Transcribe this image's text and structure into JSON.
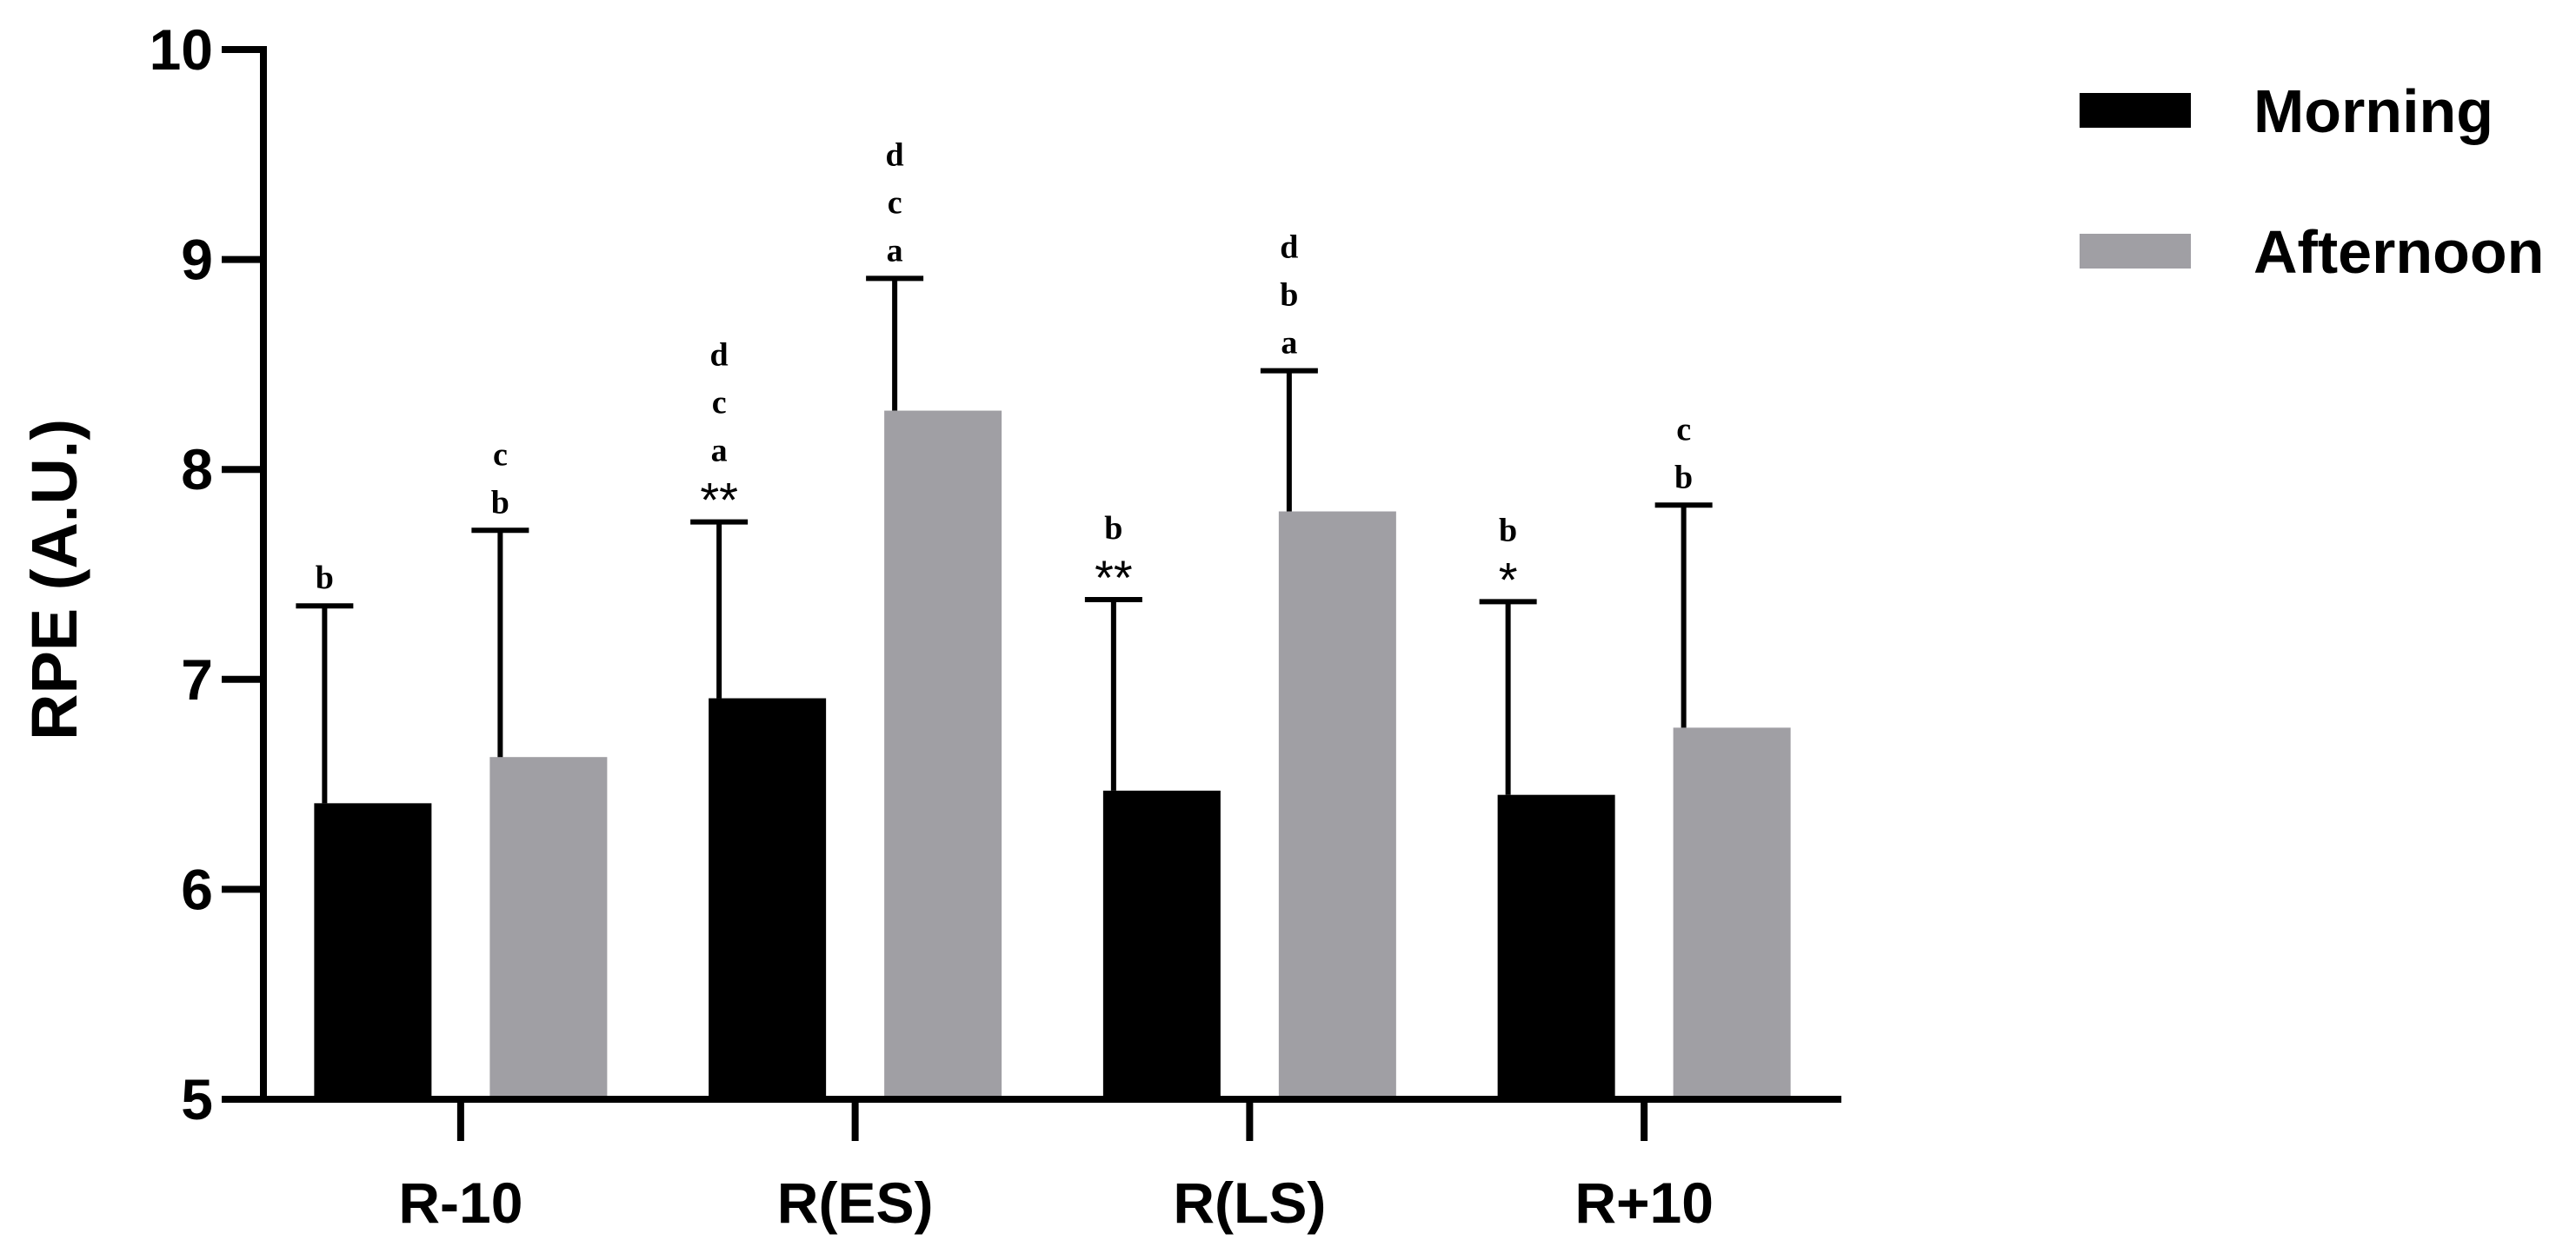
{
  "chart_data": {
    "type": "bar",
    "title": "",
    "xlabel": "",
    "ylabel": "RPE (A.U.)",
    "ylim": [
      5,
      10
    ],
    "yticks": [
      5,
      6,
      7,
      8,
      9,
      10
    ],
    "categories": [
      "R-10",
      "R(ES)",
      "R(LS)",
      "R+10"
    ],
    "series": [
      {
        "name": "Morning",
        "color": "#000000",
        "values": [
          6.41,
          6.91,
          6.47,
          6.45
        ],
        "error": [
          0.94,
          0.84,
          0.91,
          0.92
        ],
        "annotations": [
          [
            "b"
          ],
          [
            "d",
            "c",
            "a"
          ],
          [
            "b"
          ],
          [
            "b"
          ]
        ],
        "significance": [
          "",
          "**",
          "**",
          "*"
        ]
      },
      {
        "name": "Afternoon",
        "color": "#a09fa4",
        "values": [
          6.63,
          8.28,
          7.8,
          6.77
        ],
        "error": [
          1.08,
          0.63,
          0.67,
          1.06
        ],
        "annotations": [
          [
            "c",
            "b"
          ],
          [
            "d",
            "c",
            "a"
          ],
          [
            "d",
            "b",
            "a"
          ],
          [
            "c",
            "b"
          ]
        ],
        "significance": [
          "",
          "",
          "",
          ""
        ]
      }
    ],
    "legend": "top-right",
    "grid": false
  }
}
